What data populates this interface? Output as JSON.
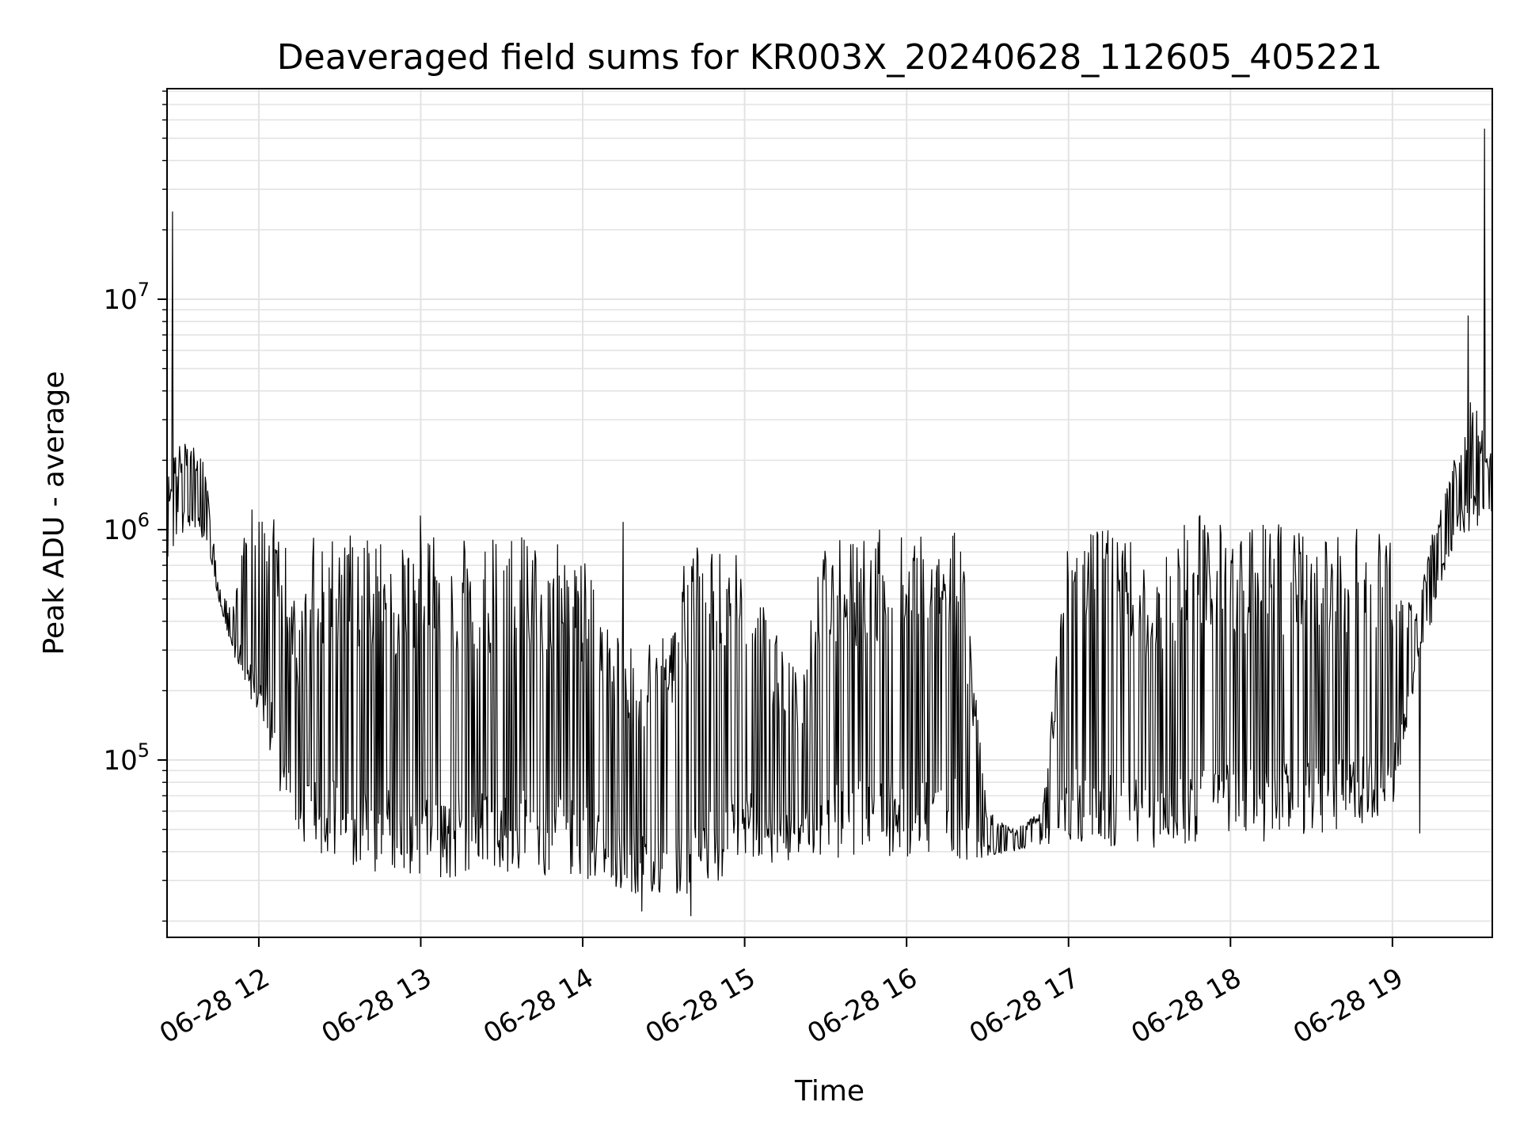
{
  "chart_data": {
    "type": "line",
    "title": "Deaveraged field sums for KR003X_20240628_112605_405221",
    "xlabel": "Time",
    "ylabel": "Peak ADU - average",
    "yscale": "log",
    "ylim": [
      17000,
      82000000
    ],
    "xlim": [
      "06-28 11:26",
      "06-28 19:37"
    ],
    "grid": true,
    "legend": "none",
    "x_ticks": [
      "06-28 12",
      "06-28 13",
      "06-28 14",
      "06-28 15",
      "06-28 16",
      "06-28 17",
      "06-28 18",
      "06-28 19"
    ],
    "y_ticks": [
      {
        "base": "10",
        "exp": "5",
        "value": 100000
      },
      {
        "base": "10",
        "exp": "6",
        "value": 1000000
      },
      {
        "base": "10",
        "exp": "7",
        "value": 10000000
      }
    ],
    "series_color": "#000000",
    "grid_color": "#e3e3e3",
    "series": [
      {
        "x": [
          "06-28 11:26",
          "06-28 11:30",
          "06-28 11:35",
          "06-28 11:40",
          "06-28 11:45",
          "06-28 11:50",
          "06-28 11:55",
          "06-28 12:00",
          "06-28 12:05",
          "06-28 12:10",
          "06-28 12:15",
          "06-28 12:20",
          "06-28 12:30",
          "06-28 12:40",
          "06-28 12:50",
          "06-28 13:00",
          "06-28 13:10",
          "06-28 13:20",
          "06-28 13:30",
          "06-28 13:40",
          "06-28 13:50",
          "06-28 14:00",
          "06-28 14:10",
          "06-28 14:20",
          "06-28 14:30",
          "06-28 14:40",
          "06-28 14:50",
          "06-28 15:00",
          "06-28 15:10",
          "06-28 15:20",
          "06-28 15:30",
          "06-28 15:40",
          "06-28 15:50",
          "06-28 16:00",
          "06-28 16:10",
          "06-28 16:20",
          "06-28 16:30",
          "06-28 16:40",
          "06-28 16:50",
          "06-28 17:00",
          "06-28 17:10",
          "06-28 17:20",
          "06-28 17:30",
          "06-28 17:40",
          "06-28 17:50",
          "06-28 18:00",
          "06-28 18:10",
          "06-28 18:20",
          "06-28 18:30",
          "06-28 18:40",
          "06-28 18:50",
          "06-28 19:00",
          "06-28 19:05",
          "06-28 19:10",
          "06-28 19:15",
          "06-28 19:20",
          "06-28 19:25",
          "06-28 19:30",
          "06-28 19:35"
        ],
        "low": [
          600000,
          950000,
          1000000,
          900000,
          500000,
          300000,
          200000,
          150000,
          100000,
          55000,
          42000,
          38000,
          35000,
          33000,
          32000,
          30000,
          30000,
          32000,
          32000,
          32000,
          31000,
          31000,
          28000,
          26000,
          25000,
          26000,
          28000,
          33000,
          34000,
          36000,
          37000,
          36000,
          37000,
          38000,
          38000,
          36000,
          38000,
          40000,
          42000,
          42000,
          40000,
          39000,
          40000,
          42000,
          43000,
          43000,
          44000,
          45000,
          46000,
          47000,
          52000,
          60000,
          120000,
          300000,
          400000,
          700000,
          950000,
          1000000,
          1100000
        ],
        "high": [
          1800000,
          2400000,
          2500000,
          2000000,
          600000,
          450000,
          1200000,
          1250000,
          1150000,
          900000,
          400000,
          950000,
          950000,
          950000,
          900000,
          950000,
          950000,
          950000,
          900000,
          950000,
          880000,
          800000,
          400000,
          300000,
          350000,
          900000,
          920000,
          900000,
          400000,
          250000,
          980000,
          980000,
          950000,
          960000,
          1050000,
          1000000,
          60000,
          50000,
          60000,
          1000000,
          1050000,
          1050000,
          650000,
          1000000,
          1200000,
          1100000,
          1080000,
          1050000,
          1000000,
          1000000,
          1050000,
          900000,
          500000,
          500000,
          1000000,
          1500000,
          2500000,
          4000000,
          2200000
        ],
        "spikes": [
          {
            "x": "06-28 11:28",
            "y": 24000000
          },
          {
            "x": "06-28 13:00",
            "y": 1150000
          },
          {
            "x": "06-28 14:15",
            "y": 1080000
          },
          {
            "x": "06-28 14:22",
            "y": 22000
          },
          {
            "x": "06-28 14:40",
            "y": 21000
          },
          {
            "x": "06-28 15:50",
            "y": 1000000
          },
          {
            "x": "06-28 19:10",
            "y": 48000
          },
          {
            "x": "06-28 19:28",
            "y": 8500000
          },
          {
            "x": "06-28 19:34",
            "y": 55000000
          }
        ]
      }
    ]
  }
}
